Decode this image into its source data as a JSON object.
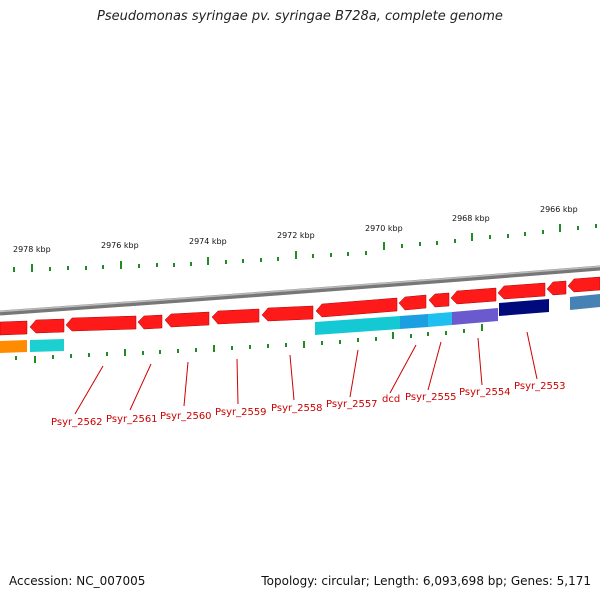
{
  "title": "Pseudomonas syringae pv. syringae B728a, complete genome",
  "footer": {
    "accession_label": "Accession:",
    "accession": "NC_007005",
    "summary": "Topology: circular; Length: 6,093,698 bp; Genes: 5,171"
  },
  "colors": {
    "forward_gene": "#ff0000",
    "backbone": "#808080",
    "tick": "#1a7a1a",
    "label": "#cc0000",
    "orange": "#ff8c00",
    "cyan": "#19d0d8",
    "sky": "#18a8e8",
    "purple": "#6a5acd",
    "navy": "#000080",
    "steel": "#4682b4"
  },
  "ruler_labels": [
    "2978 kbp",
    "2976 kbp",
    "2974 kbp",
    "2972 kbp",
    "2970 kbp",
    "2968 kbp",
    "2966 kbp"
  ],
  "gene_labels": [
    "Psyr_2562",
    "Psyr_2561",
    "Psyr_2560",
    "Psyr_2559",
    "Psyr_2558",
    "Psyr_2557",
    "dcd",
    "Psyr_2555",
    "Psyr_2554",
    "Psyr_2553"
  ]
}
